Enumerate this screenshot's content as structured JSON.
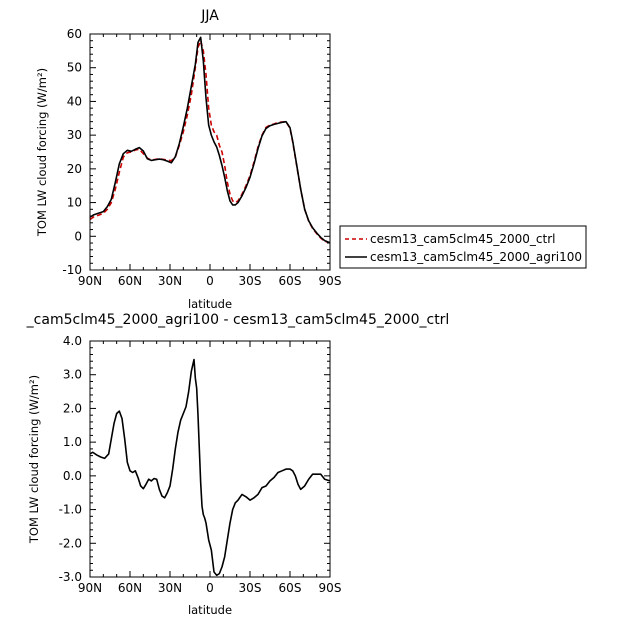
{
  "chart_data": [
    {
      "type": "line",
      "title": "JJA",
      "xlabel": "latitude",
      "ylabel": "TOM  LW  cloud  forcing  (W/m²)",
      "xlim": [
        90,
        -90
      ],
      "ylim": [
        -10,
        60
      ],
      "x_ticks": [
        "90N",
        "60N",
        "30N",
        "0",
        "30S",
        "60S",
        "90S"
      ],
      "y_ticks": [
        "-10",
        "0",
        "10",
        "20",
        "30",
        "40",
        "50",
        "60"
      ],
      "legend_placement": "right",
      "x": [
        90,
        87,
        84,
        80,
        77,
        74,
        71,
        68,
        65,
        62,
        59,
        56,
        53,
        50,
        47,
        44,
        41,
        38,
        35,
        32,
        29,
        26,
        23,
        20,
        17,
        14,
        11,
        9,
        7,
        5,
        3,
        1,
        -1,
        -3,
        -5,
        -7,
        -9,
        -11,
        -13,
        -15,
        -17,
        -19,
        -21,
        -24,
        -27,
        -30,
        -33,
        -36,
        -39,
        -42,
        -45,
        -48,
        -51,
        -54,
        -57,
        -60,
        -62,
        -65,
        -68,
        -71,
        -74,
        -77,
        -80,
        -83,
        -86,
        -90
      ],
      "series": [
        {
          "name": "cesm13_cam5clm45_2000_ctrl",
          "color": "#cc0000",
          "dash": "dashed",
          "values": [
            5.0,
            5.8,
            6.2,
            6.8,
            8.0,
            10.0,
            14.0,
            19.0,
            23.5,
            24.8,
            25.0,
            25.6,
            25.8,
            24.5,
            23.2,
            22.6,
            22.8,
            23.0,
            22.8,
            22.6,
            22.4,
            23.5,
            27.0,
            31.0,
            36.0,
            42.0,
            50.0,
            56.0,
            58.0,
            55.0,
            48.0,
            38.0,
            33.0,
            31.0,
            30.0,
            27.0,
            25.0,
            21.0,
            16.0,
            12.5,
            10.5,
            10.0,
            10.5,
            12.5,
            15.0,
            18.0,
            22.0,
            26.5,
            30.0,
            32.3,
            33.0,
            33.3,
            33.8,
            33.9,
            34.0,
            32.0,
            28.0,
            21.0,
            14.0,
            8.0,
            4.5,
            2.3,
            0.8,
            -0.5,
            -1.5,
            -2.0
          ]
        },
        {
          "name": "cesm13_cam5clm45_2000_agri100",
          "color": "#000000",
          "dash": "solid",
          "values": [
            5.7,
            6.4,
            6.8,
            7.3,
            8.8,
            11.0,
            16.0,
            21.5,
            24.5,
            25.5,
            25.2,
            25.8,
            26.3,
            25.3,
            23.0,
            22.5,
            22.7,
            22.9,
            22.7,
            22.3,
            21.8,
            23.6,
            27.5,
            32.5,
            38.0,
            44.5,
            51.0,
            57.5,
            59.0,
            52.0,
            41.0,
            33.0,
            30.0,
            28.0,
            26.5,
            24.0,
            21.0,
            17.5,
            13.5,
            10.5,
            9.3,
            9.3,
            10.0,
            12.0,
            14.5,
            17.5,
            21.5,
            26.0,
            29.8,
            32.0,
            32.8,
            33.2,
            33.5,
            33.8,
            34.0,
            32.2,
            28.3,
            21.2,
            14.0,
            8.0,
            4.6,
            2.5,
            1.0,
            -0.3,
            -1.3,
            -1.9
          ]
        }
      ]
    },
    {
      "type": "line",
      "title": "_cam5clm45_2000_agri100 - cesm13_cam5clm45_2000_ctrl",
      "xlabel": "latitude",
      "ylabel": "TOM  LW  cloud  forcing  (W/m²)",
      "xlim": [
        90,
        -90
      ],
      "ylim": [
        -3.0,
        4.0
      ],
      "x_ticks": [
        "90N",
        "60N",
        "30N",
        "0",
        "30S",
        "60S",
        "90S"
      ],
      "y_ticks": [
        "-3.0",
        "-2.0",
        "-1.0",
        "0.0",
        "1.0",
        "2.0",
        "3.0",
        "4.0"
      ],
      "x": [
        90,
        88,
        85,
        82,
        79,
        76,
        74,
        72,
        70,
        68,
        66,
        64,
        62,
        60,
        58,
        56,
        54,
        52,
        50,
        48,
        46,
        44,
        42,
        40,
        38,
        36,
        34,
        32,
        30,
        28,
        26,
        24,
        22,
        20,
        18,
        16,
        14,
        12,
        11,
        10,
        9,
        8,
        7,
        6,
        5,
        4,
        3,
        1,
        -1,
        -3,
        -5,
        -7,
        -9,
        -11,
        -13,
        -15,
        -17,
        -19,
        -21,
        -24,
        -27,
        -30,
        -33,
        -36,
        -39,
        -42,
        -45,
        -48,
        -51,
        -54,
        -57,
        -60,
        -62,
        -64,
        -66,
        -68,
        -71,
        -74,
        -77,
        -80,
        -83,
        -86,
        -90
      ],
      "series": [
        {
          "name": "",
          "color": "#000000",
          "dash": "solid",
          "values": [
            0.65,
            0.7,
            0.62,
            0.56,
            0.52,
            0.65,
            1.1,
            1.55,
            1.85,
            1.92,
            1.7,
            1.1,
            0.4,
            0.15,
            0.1,
            0.15,
            -0.05,
            -0.3,
            -0.38,
            -0.25,
            -0.1,
            -0.15,
            -0.08,
            -0.1,
            -0.4,
            -0.6,
            -0.65,
            -0.5,
            -0.3,
            0.2,
            0.8,
            1.3,
            1.65,
            1.85,
            2.05,
            2.5,
            3.1,
            3.45,
            2.9,
            2.6,
            1.8,
            0.8,
            -0.2,
            -0.9,
            -1.15,
            -1.25,
            -1.4,
            -1.9,
            -2.2,
            -2.85,
            -2.95,
            -2.9,
            -2.7,
            -2.4,
            -1.9,
            -1.4,
            -1.0,
            -0.8,
            -0.72,
            -0.55,
            -0.62,
            -0.72,
            -0.65,
            -0.55,
            -0.35,
            -0.3,
            -0.15,
            -0.05,
            0.1,
            0.15,
            0.2,
            0.2,
            0.15,
            0.0,
            -0.25,
            -0.4,
            -0.3,
            -0.1,
            0.05,
            0.05,
            0.05,
            -0.1,
            -0.15
          ]
        }
      ]
    }
  ]
}
